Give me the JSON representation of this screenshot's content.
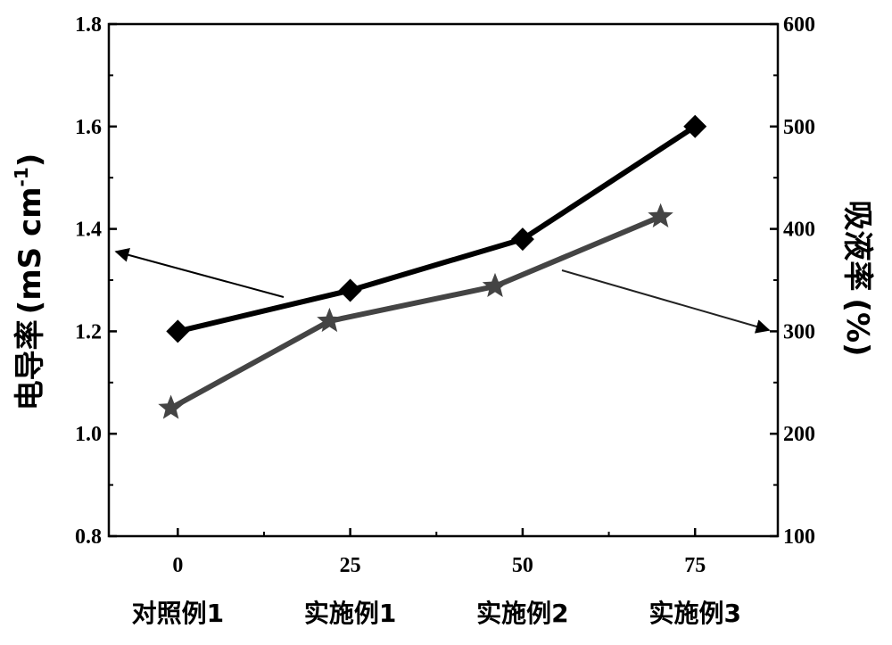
{
  "chart_data": {
    "type": "line",
    "x_ticks": [
      0,
      25,
      50,
      75
    ],
    "xlim": [
      -10,
      87
    ],
    "categories": [
      "对照例1",
      "实施例1",
      "实施例2",
      "实施例3"
    ],
    "left_axis": {
      "label_main": "电导率",
      "label_units": "(mS cm",
      "label_sup": "-1",
      "label_close": ")",
      "ylim": [
        0.8,
        1.8
      ],
      "ticks": [
        "0.8",
        "1.0",
        "1.2",
        "1.4",
        "1.6",
        "1.8"
      ]
    },
    "right_axis": {
      "label": "吸液率",
      "label_units": "(%)",
      "ylim": [
        100,
        600
      ],
      "ticks": [
        "100",
        "200",
        "300",
        "400",
        "500",
        "600"
      ]
    },
    "series": [
      {
        "axis": "left",
        "marker": "diamond",
        "color": "#000000",
        "points": [
          {
            "x": 0,
            "y": 1.2
          },
          {
            "x": 25,
            "y": 1.28
          },
          {
            "x": 50,
            "y": 1.38
          },
          {
            "x": 75,
            "y": 1.6
          }
        ]
      },
      {
        "axis": "right",
        "marker": "star",
        "color": "#444444",
        "points": [
          {
            "x": -1,
            "y": 225
          },
          {
            "x": 22,
            "y": 310
          },
          {
            "x": 46,
            "y": 344
          },
          {
            "x": 70,
            "y": 412
          }
        ]
      }
    ],
    "annotations": [
      {
        "type": "arrow",
        "target_axis": "left",
        "direction": "left"
      },
      {
        "type": "arrow",
        "target_axis": "right",
        "direction": "right"
      }
    ],
    "grid": false
  }
}
